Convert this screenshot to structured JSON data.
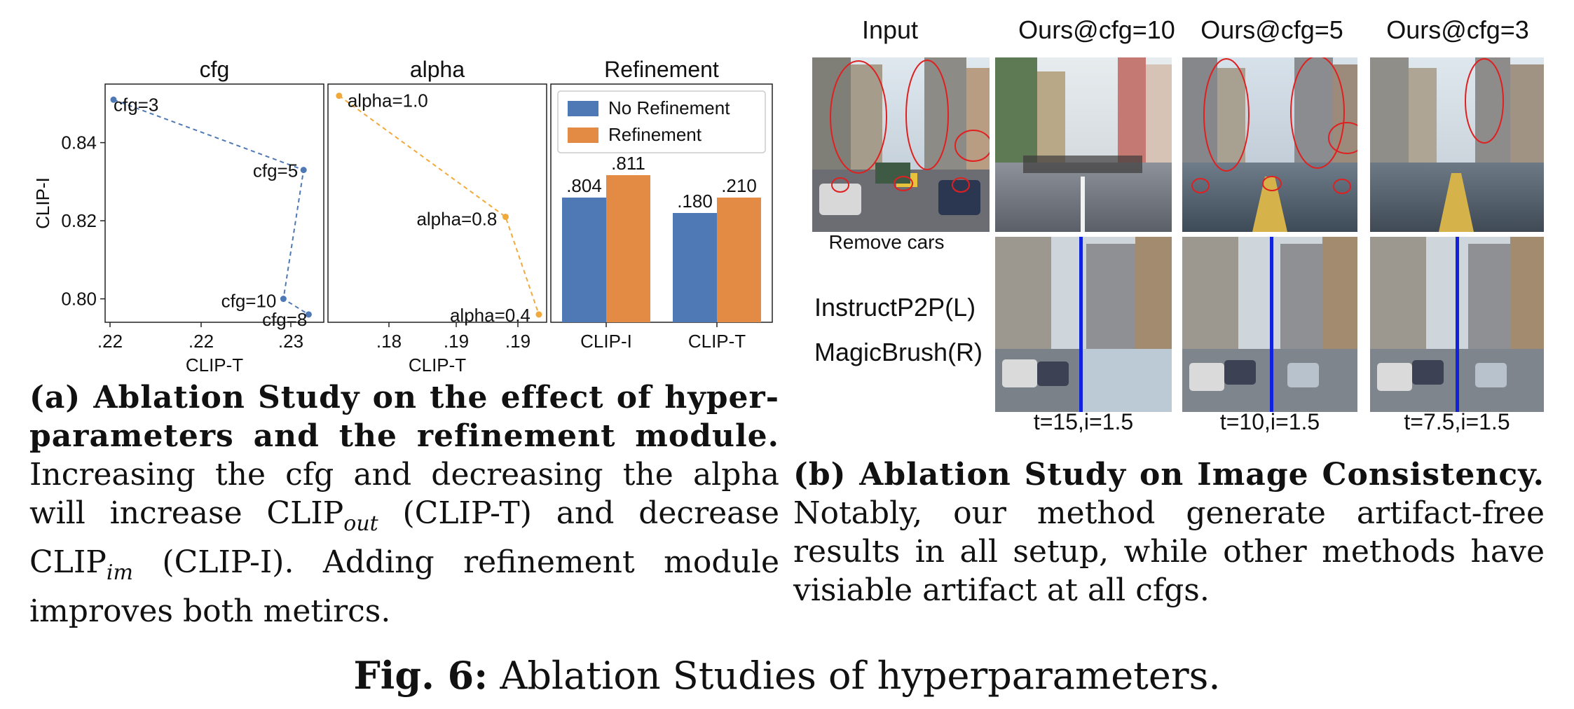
{
  "chart_data": [
    {
      "type": "scatter",
      "title": "cfg",
      "xlabel": "CLIP-T",
      "ylabel": "CLIP-I",
      "x_ticks": [
        ".22",
        ".22",
        ".23"
      ],
      "y_ticks": [
        "0.84",
        "0.82",
        "0.80"
      ],
      "ylim": [
        0.794,
        0.855
      ],
      "xlim": [
        0.2195,
        0.2325
      ],
      "points": [
        {
          "label": "cfg=3",
          "x": 0.22,
          "y": 0.851
        },
        {
          "label": "cfg=5",
          "x": 0.2313,
          "y": 0.833
        },
        {
          "label": "cfg=10",
          "x": 0.2301,
          "y": 0.8
        },
        {
          "label": "cfg=8",
          "x": 0.2316,
          "y": 0.796
        }
      ],
      "line_style": "dashed",
      "color": "#4e79b5"
    },
    {
      "type": "scatter",
      "title": "alpha",
      "xlabel": "CLIP-T",
      "x_ticks": [
        ".18",
        ".19",
        ".19"
      ],
      "xlim": [
        0.1735,
        0.1932
      ],
      "ylim": [
        0.794,
        0.855
      ],
      "points": [
        {
          "label": "alpha=1.0",
          "x": 0.1745,
          "y": 0.852
        },
        {
          "label": "alpha=0.8",
          "x": 0.1895,
          "y": 0.821
        },
        {
          "label": "alpha=0.4",
          "x": 0.1925,
          "y": 0.796
        }
      ],
      "line_style": "dashed",
      "color": "#f2a93b"
    },
    {
      "type": "bar",
      "title": "Refinement",
      "categories": [
        "CLIP-I",
        "CLIP-T"
      ],
      "series": [
        {
          "name": "No Refinement",
          "values": [
            0.804,
            0.18
          ],
          "labels": [
            ".804",
            ".180"
          ],
          "color": "#4e79b5"
        },
        {
          "name": "Refinement",
          "values": [
            0.811,
            0.21
          ],
          "labels": [
            ".811",
            ".210"
          ],
          "color": "#e38b45"
        }
      ],
      "legend_position": "top"
    }
  ],
  "panel_b": {
    "col_headers": [
      "Input",
      "Ours@cfg=10",
      "Ours@cfg=5",
      "Ours@cfg=3"
    ],
    "input_caption": "Remove cars",
    "method_labels": [
      "InstructP2P(L)",
      "MagicBrush(R)"
    ],
    "row_labels": [
      "t=15,i=1.5",
      "t=10,i=1.5",
      "t=7.5,i=1.5"
    ]
  },
  "caption_a": {
    "bold": "(a) Ablation Study on the effect of hyper-parameters and the refinement module.",
    "text1": " Increasing the cfg and decreasing the alpha will increase CLIP",
    "sub1": "out",
    "text2": " (CLIP-T) and decrease CLIP",
    "sub2": "im",
    "text3": " (CLIP-I). Adding refinement module improves both metircs."
  },
  "caption_b": {
    "bold": "(b) Ablation Study on Image Consistency.",
    "text": " Notably, our method generate artifact-free results in all setup, while other methods have visiable artifact at all cfgs."
  },
  "figure_caption": {
    "label": "Fig. 6:",
    "text": " Ablation Studies of hyperparameters."
  }
}
